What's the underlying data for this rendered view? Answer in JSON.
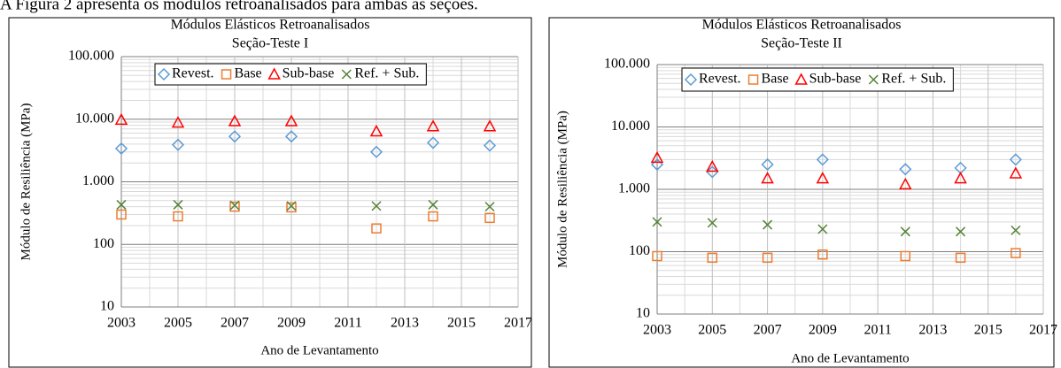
{
  "text": "A Figura 2 apresenta os módulos retroanalisados para ambas as seções.",
  "chart_data": [
    {
      "type": "scatter",
      "title": "Módulos Elásticos Retroanalisados",
      "subtitle": "Seção-Teste I",
      "x_label": "Ano de Levantamento",
      "y_label": "Módulo de Resiliência (MPa)",
      "x": [
        2003,
        2005,
        2007,
        2009,
        2012,
        2014,
        2016
      ],
      "xlim": [
        2003,
        2017
      ],
      "xticks": [
        2003,
        2005,
        2007,
        2009,
        2011,
        2013,
        2015,
        2017
      ],
      "ylim": [
        10,
        100000
      ],
      "y_scale": "log",
      "yticks": [
        10,
        100,
        {
          "value": 1000,
          "label": "1.000"
        },
        {
          "value": 10000,
          "label": "10.000"
        },
        {
          "value": 100000,
          "label": "100.000"
        }
      ],
      "grid": true,
      "legend": "top",
      "series": [
        {
          "name": "Revest.",
          "color": "#5b9bd5",
          "marker": "diamond",
          "values": [
            3400,
            3900,
            5300,
            5300,
            3000,
            4200,
            3800
          ]
        },
        {
          "name": "Base",
          "color": "#ed7d31",
          "marker": "square",
          "values": [
            300,
            280,
            400,
            390,
            180,
            280,
            265
          ]
        },
        {
          "name": "Sub-base",
          "color": "#ff0000",
          "marker": "triangle",
          "values": [
            9800,
            8800,
            9300,
            9300,
            6400,
            7700,
            7700
          ]
        },
        {
          "name": "Ref. + Sub.",
          "color": "#548235",
          "marker": "x",
          "values": [
            430,
            430,
            420,
            410,
            410,
            430,
            400
          ]
        }
      ]
    },
    {
      "type": "scatter",
      "title": "Módulos Elásticos Retroanalisados",
      "subtitle": "Seção-Teste II",
      "x_label": "Ano de Levantamento",
      "y_label": "Módulo de Resiliência (MPa)",
      "x": [
        2003,
        2005,
        2007,
        2009,
        2012,
        2014,
        2016
      ],
      "xlim": [
        2003,
        2017
      ],
      "xticks": [
        2003,
        2005,
        2007,
        2009,
        2011,
        2013,
        2015,
        2017
      ],
      "ylim": [
        10,
        100000
      ],
      "y_scale": "log",
      "yticks": [
        10,
        100,
        {
          "value": 1000,
          "label": "1.000"
        },
        {
          "value": 10000,
          "label": "10.000"
        },
        {
          "value": 100000,
          "label": "100.000"
        }
      ],
      "grid": true,
      "legend": "top",
      "series": [
        {
          "name": "Revest.",
          "color": "#5b9bd5",
          "marker": "diamond",
          "values": [
            2500,
            1900,
            2500,
            3000,
            2100,
            2200,
            3000
          ]
        },
        {
          "name": "Base",
          "color": "#ed7d31",
          "marker": "square",
          "values": [
            85,
            80,
            80,
            90,
            85,
            80,
            95
          ]
        },
        {
          "name": "Sub-base",
          "color": "#ff0000",
          "marker": "triangle",
          "values": [
            3200,
            2300,
            1500,
            1500,
            1200,
            1500,
            1800
          ]
        },
        {
          "name": "Ref. + Sub.",
          "color": "#548235",
          "marker": "x",
          "values": [
            300,
            290,
            270,
            230,
            210,
            210,
            220
          ]
        }
      ]
    }
  ]
}
